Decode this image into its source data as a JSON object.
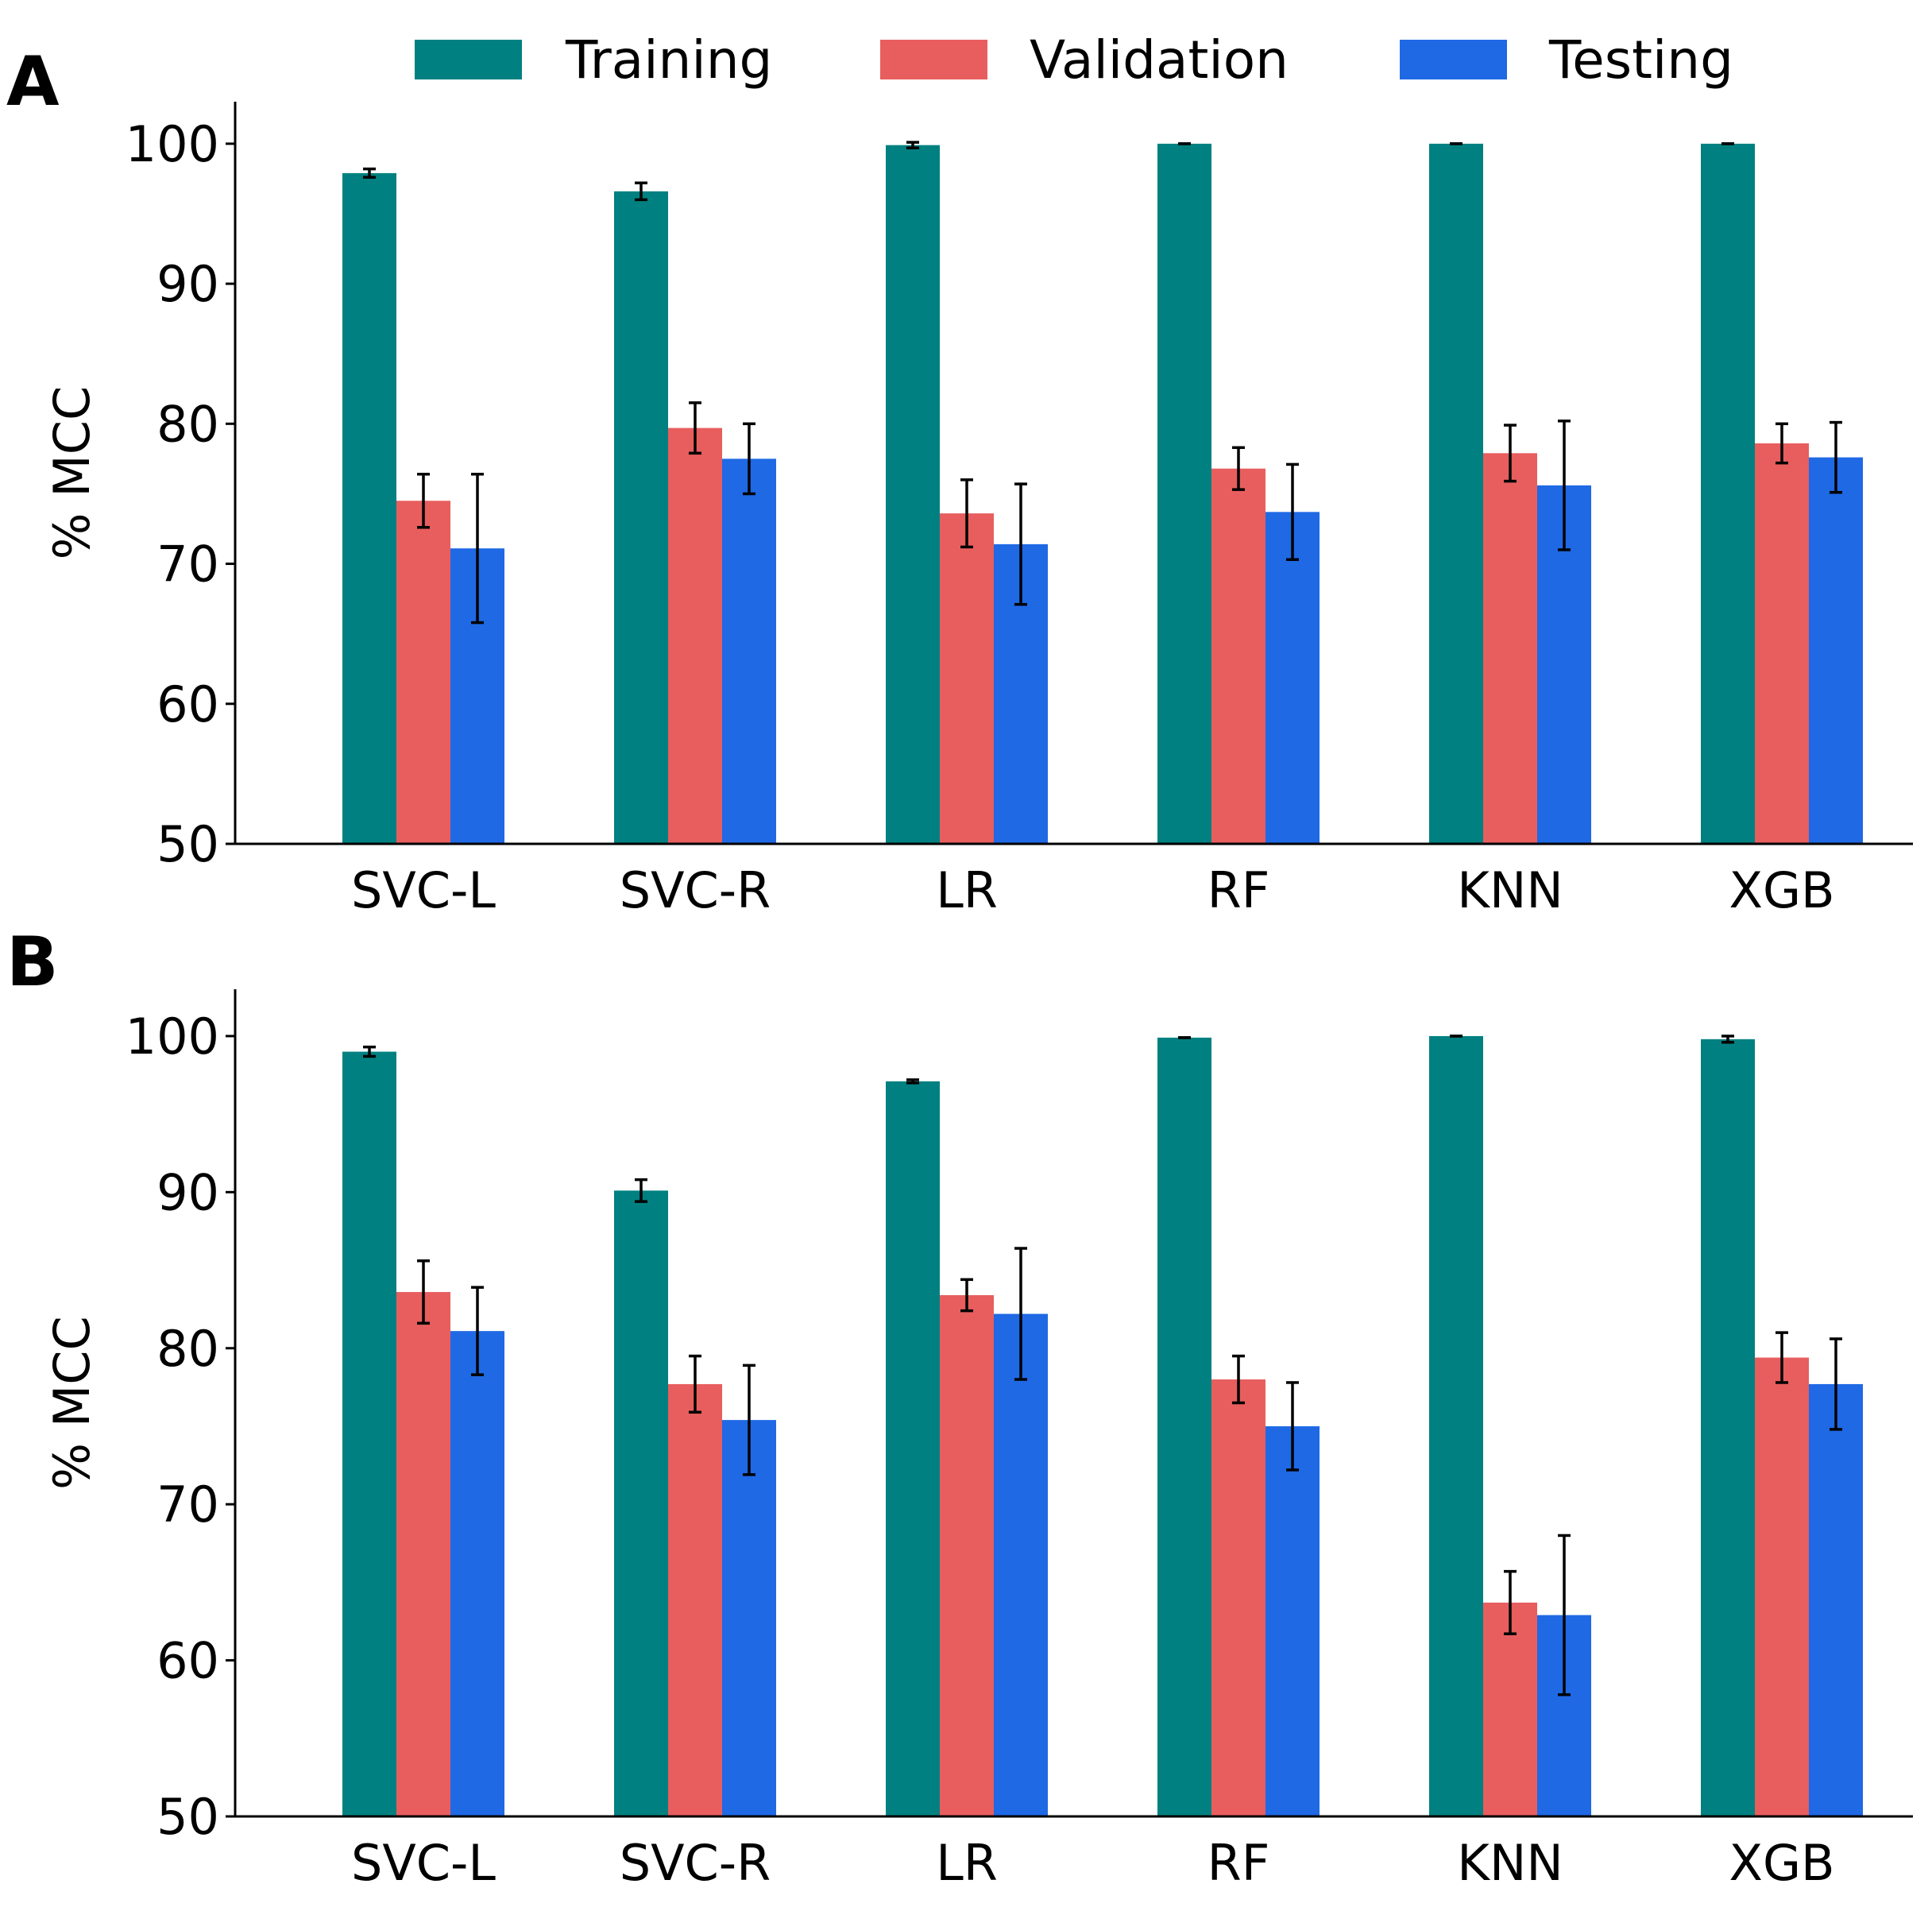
{
  "figure": {
    "panel_labels": [
      "A",
      "B"
    ]
  },
  "legend": [
    {
      "name": "Training",
      "color": "#008080"
    },
    {
      "name": "Validation",
      "color": "#E85E5E"
    },
    {
      "name": "Testing",
      "color": "#1F69E5"
    }
  ],
  "chart_data": [
    {
      "panel": "A",
      "type": "bar",
      "ylabel": "% MCC",
      "ylim": [
        50,
        103
      ],
      "yticks": [
        50,
        60,
        70,
        80,
        90,
        100
      ],
      "categories": [
        "SVC-L",
        "SVC-R",
        "LR",
        "RF",
        "KNN",
        "XGB"
      ],
      "series": [
        {
          "name": "Training",
          "values": [
            97.9,
            96.6,
            99.9,
            100.0,
            100.0,
            100.0
          ],
          "errors": [
            0.3,
            0.6,
            0.2,
            0.0,
            0.0,
            0.0
          ]
        },
        {
          "name": "Validation",
          "values": [
            74.5,
            79.7,
            73.6,
            76.8,
            77.9,
            78.6
          ],
          "errors": [
            1.9,
            1.8,
            2.4,
            1.5,
            2.0,
            1.4
          ]
        },
        {
          "name": "Testing",
          "values": [
            71.1,
            77.5,
            71.4,
            73.7,
            75.6,
            77.6
          ],
          "errors": [
            5.3,
            2.5,
            4.3,
            3.4,
            4.6,
            2.5
          ]
        }
      ]
    },
    {
      "panel": "B",
      "type": "bar",
      "ylabel": "% MCC",
      "ylim": [
        50,
        103
      ],
      "yticks": [
        50,
        60,
        70,
        80,
        90,
        100
      ],
      "categories": [
        "SVC-L",
        "SVC-R",
        "LR",
        "RF",
        "KNN",
        "XGB"
      ],
      "series": [
        {
          "name": "Training",
          "values": [
            99.0,
            90.1,
            97.1,
            99.9,
            100.0,
            99.8
          ],
          "errors": [
            0.3,
            0.7,
            0.1,
            0.0,
            0.0,
            0.2
          ]
        },
        {
          "name": "Validation",
          "values": [
            83.6,
            77.7,
            83.4,
            78.0,
            63.7,
            79.4
          ],
          "errors": [
            2.0,
            1.8,
            1.0,
            1.5,
            2.0,
            1.6
          ]
        },
        {
          "name": "Testing",
          "values": [
            81.1,
            75.4,
            82.2,
            75.0,
            62.9,
            77.7
          ],
          "errors": [
            2.8,
            3.5,
            4.2,
            2.8,
            5.1,
            2.9
          ]
        }
      ]
    }
  ]
}
